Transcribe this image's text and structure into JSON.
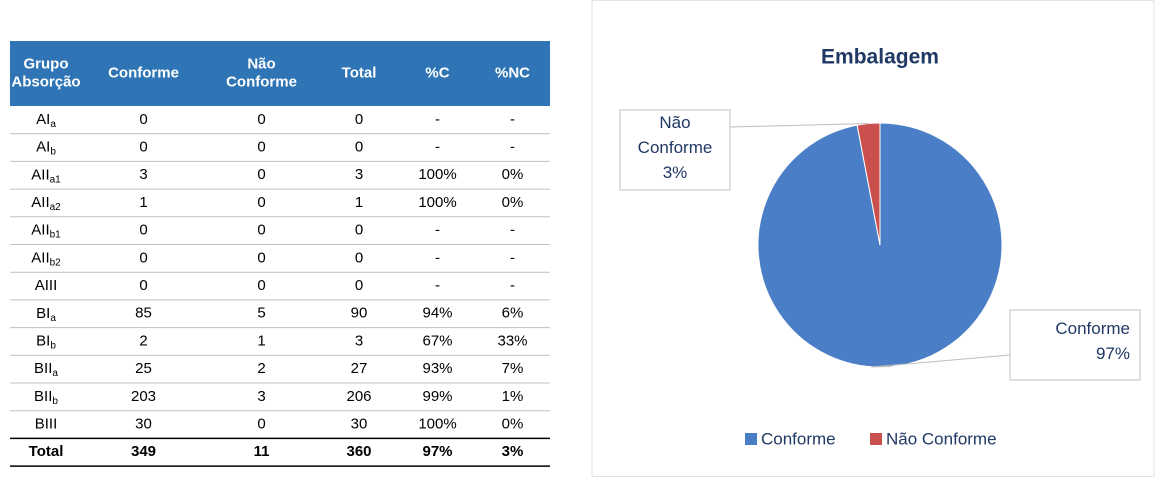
{
  "table": {
    "header": [
      "Grupo Absorção",
      "Conforme",
      "Não Conforme",
      "Total",
      "%C",
      "%NC"
    ],
    "rows": [
      {
        "group": "AI",
        "sub": "a",
        "cells": [
          0,
          0,
          0,
          "-",
          "-"
        ]
      },
      {
        "group": "AI",
        "sub": "b",
        "cells": [
          0,
          0,
          0,
          "-",
          "-"
        ]
      },
      {
        "group": "AII",
        "sub": "a1",
        "cells": [
          3,
          0,
          3,
          "100%",
          "0%"
        ]
      },
      {
        "group": "AII",
        "sub": "a2",
        "cells": [
          1,
          0,
          1,
          "100%",
          "0%"
        ]
      },
      {
        "group": "AII",
        "sub": "b1",
        "cells": [
          0,
          0,
          0,
          "-",
          "-"
        ]
      },
      {
        "group": "AII",
        "sub": "b2",
        "cells": [
          0,
          0,
          0,
          "-",
          "-"
        ]
      },
      {
        "group": "AIII",
        "cells": [
          0,
          0,
          0,
          "-",
          "-"
        ]
      },
      {
        "group": "BI",
        "sub": "a",
        "cells": [
          85,
          5,
          90,
          "94%",
          "6%"
        ]
      },
      {
        "group": "BI",
        "sub": "b",
        "cells": [
          2,
          1,
          3,
          "67%",
          "33%"
        ]
      },
      {
        "group": "BII",
        "sub": "a",
        "cells": [
          25,
          2,
          27,
          "93%",
          "7%"
        ]
      },
      {
        "group": "BII",
        "sub": "b",
        "cells": [
          203,
          3,
          206,
          "99%",
          "1%"
        ]
      },
      {
        "group": "BIII",
        "cells": [
          30,
          0,
          30,
          "100%",
          "0%"
        ]
      }
    ],
    "total": [
      "Total",
      349,
      11,
      360,
      "97%",
      "3%"
    ]
  },
  "chart_data": {
    "type": "pie",
    "title": "Embalagem",
    "categories": [
      "Conforme",
      "Não Conforme"
    ],
    "values": [
      97,
      3
    ],
    "value_labels": [
      "97%",
      "3%"
    ],
    "colors": [
      "#4a7ec6",
      "#c9504d"
    ],
    "legend": "bottom"
  }
}
